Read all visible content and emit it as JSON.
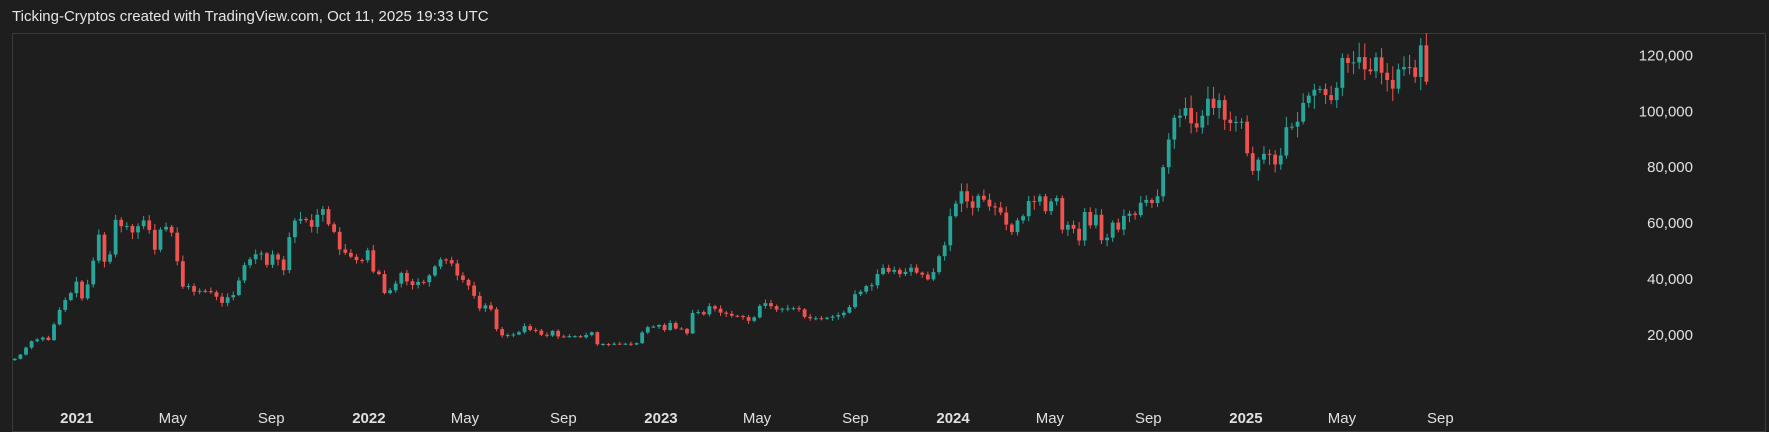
{
  "header": {
    "text": "Ticking-Cryptos created with TradingView.com, Oct 11, 2025 19:33 UTC"
  },
  "colors": {
    "background": "#1e1e1e",
    "frame": "#3a3a3a",
    "up": "#26a69a",
    "down": "#ef5350",
    "text": "#e0e0e0"
  },
  "chart_data": {
    "type": "candlestick",
    "title": "",
    "xlabel": "",
    "ylabel": "",
    "grid": false,
    "ylim": [
      10000,
      128000
    ],
    "xlim": [
      "2020-10-12",
      "2025-10-13"
    ],
    "y_ticks": [
      {
        "value": 20000,
        "label": "20,000"
      },
      {
        "value": 40000,
        "label": "40,000"
      },
      {
        "value": 60000,
        "label": "60,000"
      },
      {
        "value": 80000,
        "label": "80,000"
      },
      {
        "value": 100000,
        "label": "100,000"
      },
      {
        "value": 120000,
        "label": "120,000"
      }
    ],
    "x_ticks": [
      {
        "date": "2021-01-01",
        "label": "2021",
        "bold": true
      },
      {
        "date": "2021-05-01",
        "label": "May",
        "bold": false
      },
      {
        "date": "2021-09-01",
        "label": "Sep",
        "bold": false
      },
      {
        "date": "2022-01-01",
        "label": "2022",
        "bold": true
      },
      {
        "date": "2022-05-01",
        "label": "May",
        "bold": false
      },
      {
        "date": "2022-09-01",
        "label": "Sep",
        "bold": false
      },
      {
        "date": "2023-01-01",
        "label": "2023",
        "bold": true
      },
      {
        "date": "2023-05-01",
        "label": "May",
        "bold": false
      },
      {
        "date": "2023-09-01",
        "label": "Sep",
        "bold": false
      },
      {
        "date": "2024-01-01",
        "label": "2024",
        "bold": true
      },
      {
        "date": "2024-05-01",
        "label": "May",
        "bold": false
      },
      {
        "date": "2024-09-01",
        "label": "Sep",
        "bold": false
      },
      {
        "date": "2025-01-01",
        "label": "2025",
        "bold": true
      },
      {
        "date": "2025-05-01",
        "label": "May",
        "bold": false
      },
      {
        "date": "2025-09-01",
        "label": "Sep",
        "bold": false
      }
    ],
    "series": [
      {
        "interval": "weekly",
        "start_date": "2020-10-12",
        "closes": [
          11500,
          13000,
          15500,
          17800,
          18400,
          19100,
          18200,
          23800,
          29000,
          32500,
          35000,
          39100,
          33100,
          38100,
          46600,
          55900,
          46200,
          48800,
          61200,
          58900,
          59000,
          56700,
          58900,
          61000,
          57600,
          50500,
          57700,
          58700,
          56600,
          46400,
          37300,
          37500,
          35500,
          35800,
          35700,
          35300,
          33700,
          31500,
          33500,
          34300,
          39500,
          45000,
          47100,
          48900,
          49200,
          45100,
          48800,
          47000,
          43200,
          55000,
          60900,
          61500,
          61100,
          58700,
          63000,
          65000,
          59600,
          56900,
          50600,
          49400,
          48000,
          46800,
          46700,
          50300,
          42700,
          41800,
          35000,
          36000,
          38400,
          42200,
          39200,
          37900,
          39000,
          38900,
          41300,
          44500,
          47000,
          46800,
          45600,
          41300,
          39700,
          37700,
          34000,
          29500,
          30600,
          29200,
          22100,
          19900,
          20000,
          20200,
          21000,
          23200,
          21800,
          21600,
          20100,
          19800,
          21500,
          19500,
          19300,
          19600,
          19600,
          19200,
          20000,
          21000,
          16700,
          16800,
          16700,
          16900,
          16800,
          16900,
          16600,
          17100,
          20900,
          22800,
          23000,
          23600,
          21800,
          24300,
          22300,
          22200,
          20600,
          27900,
          28200,
          27400,
          30300,
          29400,
          28000,
          27600,
          26900,
          26800,
          26400,
          25100,
          26300,
          30400,
          31400,
          30300,
          29100,
          29400,
          29500,
          29600,
          29200,
          26500,
          26000,
          26000,
          25800,
          26200,
          26600,
          27100,
          28000,
          30000,
          34600,
          35500,
          37500,
          37800,
          41800,
          44000,
          42600,
          43300,
          41800,
          42600,
          44100,
          42300,
          41600,
          39900,
          42500,
          48200,
          52100,
          62500,
          67000,
          71400,
          67800,
          65500,
          69800,
          68400,
          66000,
          65600,
          63800,
          59500,
          56800,
          61000,
          62500,
          67900,
          67700,
          69600,
          64300,
          67800,
          69000,
          57700,
          59400,
          58000,
          53800,
          64000,
          59200,
          63000,
          53900,
          54800,
          60200,
          57700,
          62600,
          63400,
          62900,
          67300,
          68300,
          67200,
          69600,
          80000,
          89900,
          97700,
          98400,
          101200,
          95700,
          94200,
          98400,
          104500,
          101200,
          104000,
          97000,
          95800,
          96200,
          96300,
          85000,
          78700,
          82700,
          84800,
          84500,
          81000,
          84200,
          94300,
          94500,
          96300,
          103000,
          105600,
          107700,
          108000,
          105800,
          104000,
          108400,
          119100,
          117300,
          117500,
          119400,
          115000,
          114300,
          119300,
          113800,
          111200,
          108100,
          115000,
          115800,
          115700,
          112300,
          123600,
          110600
        ]
      }
    ]
  }
}
